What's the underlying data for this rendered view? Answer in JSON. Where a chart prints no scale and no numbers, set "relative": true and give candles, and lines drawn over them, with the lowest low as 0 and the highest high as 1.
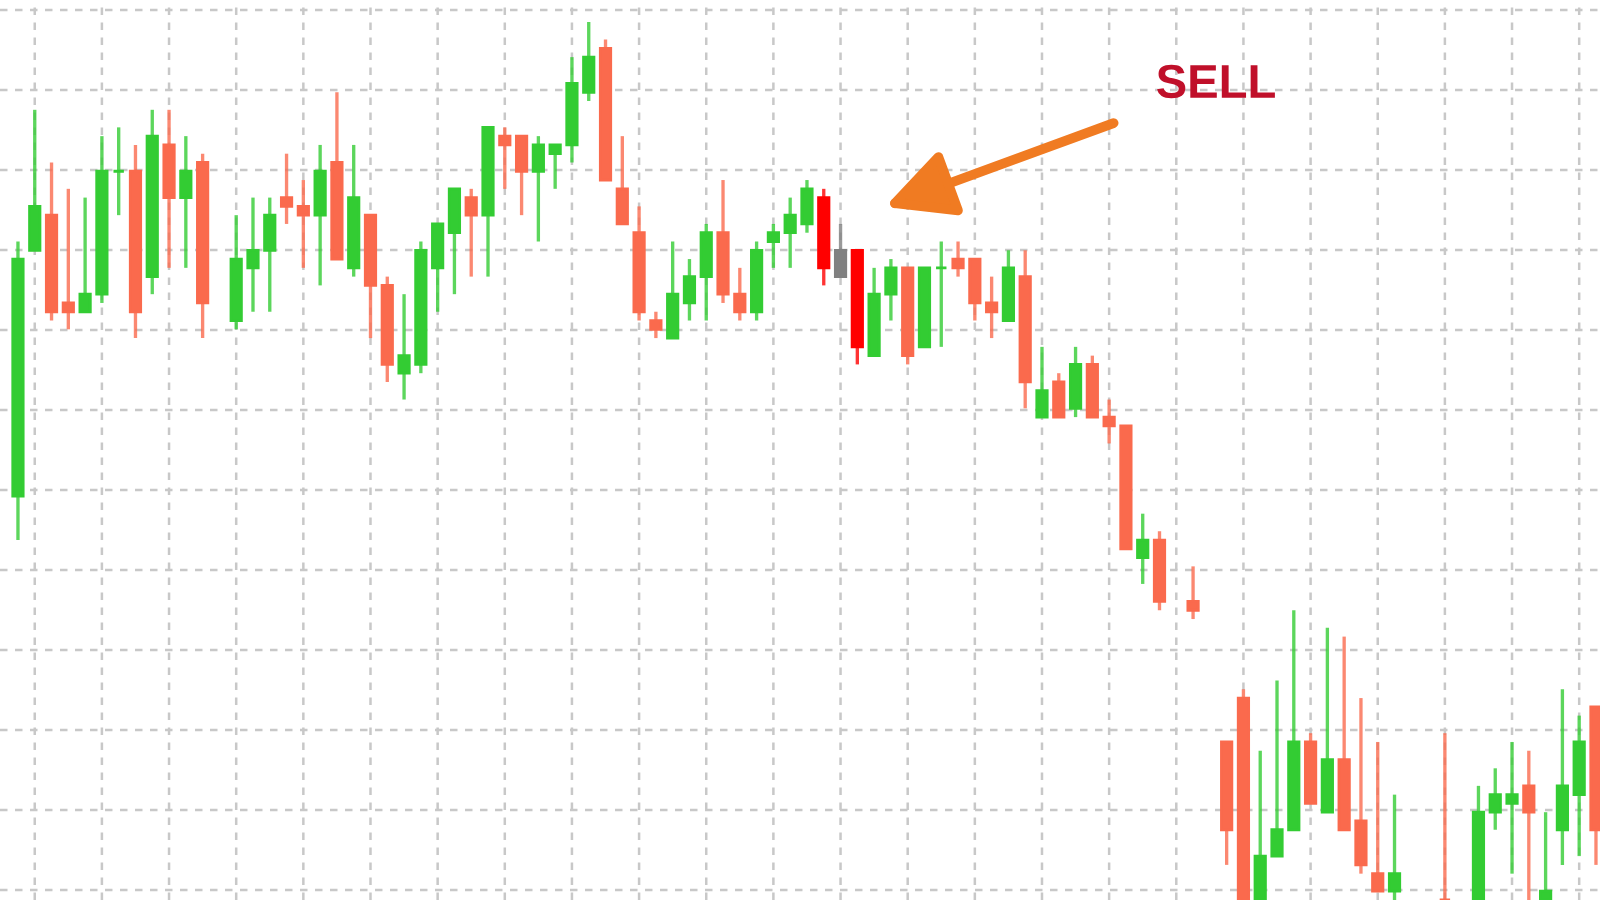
{
  "chart_data": {
    "type": "candlestick",
    "relative": true,
    "grid": true,
    "annotations": [
      "SELL"
    ],
    "categories": [
      null,
      null,
      null,
      null,
      null,
      null,
      null,
      null,
      null,
      null,
      null,
      null,
      null,
      null,
      null,
      null,
      null,
      null,
      null,
      null,
      null,
      null,
      null,
      null,
      null,
      null,
      null,
      null,
      null,
      null,
      null,
      null,
      null,
      null,
      null,
      null,
      null,
      null,
      null,
      null,
      null,
      null,
      null,
      null,
      null,
      null,
      null,
      null,
      null,
      null,
      null,
      null,
      null,
      null,
      null,
      null,
      null,
      null,
      null,
      null,
      null,
      null,
      null,
      null,
      null,
      null,
      null,
      null,
      null,
      null,
      null,
      null,
      null,
      null,
      null,
      null,
      null,
      null,
      null,
      null,
      null,
      null,
      null,
      null,
      null,
      null,
      null,
      null,
      null,
      null,
      null,
      null,
      null,
      null,
      null
    ],
    "ohlc": [
      [
        0.46,
        0.75,
        0.41,
        0.73
      ],
      [
        0.74,
        0.9,
        0.74,
        0.79
      ],
      [
        0.78,
        0.84,
        0.66,
        0.67
      ],
      [
        0.68,
        0.81,
        0.65,
        0.67
      ],
      [
        0.67,
        0.8,
        0.67,
        0.69
      ],
      [
        0.69,
        0.87,
        0.68,
        0.83
      ],
      [
        0.83,
        0.88,
        0.78,
        0.83
      ],
      [
        0.83,
        0.86,
        0.64,
        0.67
      ],
      [
        0.71,
        0.9,
        0.69,
        0.87
      ],
      [
        0.86,
        0.9,
        0.72,
        0.8
      ],
      [
        0.8,
        0.87,
        0.72,
        0.83
      ],
      [
        0.84,
        0.85,
        0.64,
        0.68
      ],
      null,
      [
        0.66,
        0.78,
        0.65,
        0.73
      ],
      [
        0.72,
        0.8,
        0.67,
        0.74
      ],
      [
        0.74,
        0.8,
        0.67,
        0.78
      ],
      [
        0.8,
        0.85,
        0.77,
        0.79
      ],
      [
        0.79,
        0.82,
        0.72,
        0.78
      ],
      [
        0.78,
        0.86,
        0.7,
        0.83
      ],
      [
        0.84,
        0.92,
        0.73,
        0.73
      ],
      [
        0.72,
        0.86,
        0.71,
        0.8
      ],
      [
        0.78,
        0.78,
        0.64,
        0.7
      ],
      [
        0.7,
        0.71,
        0.59,
        0.61
      ],
      [
        0.6,
        0.69,
        0.57,
        0.62
      ],
      [
        0.61,
        0.75,
        0.6,
        0.74
      ],
      [
        0.72,
        0.77,
        0.67,
        0.77
      ],
      [
        0.76,
        0.81,
        0.69,
        0.81
      ],
      [
        0.8,
        0.81,
        0.71,
        0.78
      ],
      [
        0.78,
        0.88,
        0.71,
        0.88
      ],
      [
        0.87,
        0.88,
        0.81,
        0.86
      ],
      [
        0.87,
        0.87,
        0.78,
        0.83
      ],
      [
        0.83,
        0.87,
        0.75,
        0.86
      ],
      [
        0.85,
        0.86,
        0.81,
        0.86
      ],
      [
        0.86,
        0.96,
        0.84,
        0.93
      ],
      [
        0.92,
        1.0,
        0.91,
        0.96
      ],
      [
        0.97,
        0.98,
        0.82,
        0.82
      ],
      [
        0.81,
        0.87,
        0.77,
        0.77
      ],
      [
        0.76,
        0.79,
        0.66,
        0.67
      ],
      [
        0.66,
        0.67,
        0.64,
        0.65
      ],
      [
        0.64,
        0.75,
        0.64,
        0.69
      ],
      [
        0.68,
        0.73,
        0.66,
        0.71
      ],
      [
        0.71,
        0.77,
        0.66,
        0.76
      ],
      [
        0.76,
        0.82,
        0.68,
        0.69
      ],
      [
        0.69,
        0.72,
        0.66,
        0.67
      ],
      [
        0.67,
        0.75,
        0.66,
        0.74
      ],
      [
        0.75,
        0.77,
        0.72,
        0.76
      ],
      [
        0.76,
        0.8,
        0.72,
        0.78
      ],
      [
        0.77,
        0.82,
        0.76,
        0.81
      ],
      [
        0.8,
        0.81,
        0.7,
        0.72
      ],
      [
        0.74,
        0.77,
        0.71,
        0.71
      ],
      [
        0.74,
        0.74,
        0.61,
        0.63
      ],
      [
        0.62,
        0.72,
        0.62,
        0.69
      ],
      [
        0.69,
        0.73,
        0.66,
        0.72
      ],
      [
        0.72,
        0.72,
        0.61,
        0.62
      ],
      [
        0.63,
        0.72,
        0.63,
        0.72
      ],
      [
        0.72,
        0.75,
        0.63,
        0.72
      ],
      [
        0.73,
        0.75,
        0.71,
        0.72
      ],
      [
        0.73,
        0.73,
        0.66,
        0.68
      ],
      [
        0.68,
        0.71,
        0.64,
        0.67
      ],
      [
        0.66,
        0.74,
        0.66,
        0.72
      ],
      [
        0.71,
        0.74,
        0.56,
        0.59
      ],
      [
        0.55,
        0.63,
        0.55,
        0.58
      ],
      [
        0.59,
        0.6,
        0.55,
        0.55
      ],
      [
        0.56,
        0.63,
        0.55,
        0.61
      ],
      [
        0.61,
        0.62,
        0.55,
        0.55
      ],
      [
        0.55,
        0.57,
        0.52,
        0.54
      ],
      [
        0.54,
        0.54,
        0.4,
        0.4
      ],
      [
        0.39,
        0.44,
        0.36,
        0.41
      ],
      [
        0.41,
        0.42,
        0.33,
        0.34
      ],
      null,
      [
        0.34,
        0.38,
        0.32,
        0.33
      ],
      null,
      [
        0.18,
        0.18,
        0.04,
        0.08
      ],
      [
        0.23,
        0.24,
        0.0,
        0.0
      ],
      [
        0.0,
        0.17,
        0.0,
        0.05
      ],
      [
        0.05,
        0.25,
        0.05,
        0.08
      ],
      [
        0.08,
        0.33,
        0.08,
        0.18
      ],
      [
        0.18,
        0.19,
        0.11,
        0.11
      ],
      [
        0.1,
        0.31,
        0.1,
        0.16
      ],
      [
        0.16,
        0.3,
        0.08,
        0.08
      ],
      [
        0.09,
        0.23,
        0.03,
        0.04
      ],
      [
        0.03,
        0.18,
        0.01,
        0.01
      ],
      [
        0.01,
        0.12,
        0.0,
        0.03
      ],
      null,
      null,
      [
        0.0,
        0.19,
        0.0,
        0.0
      ],
      null,
      [
        0.0,
        0.13,
        0.0,
        0.1
      ],
      [
        0.1,
        0.15,
        0.08,
        0.12
      ],
      [
        0.11,
        0.18,
        0.03,
        0.12
      ],
      [
        0.13,
        0.17,
        0.0,
        0.1
      ],
      [
        0.0,
        0.1,
        0.0,
        0.01
      ],
      [
        0.08,
        0.24,
        0.04,
        0.13
      ],
      [
        0.12,
        0.21,
        0.05,
        0.18
      ],
      [
        0.22,
        0.22,
        0.04,
        0.08
      ]
    ],
    "colors": [
      "#33cc33",
      "#33cc33",
      "#fa6a4d",
      "#fa6a4d",
      "#33cc33",
      "#33cc33",
      "#33cc33",
      "#fa6a4d",
      "#33cc33",
      "#fa6a4d",
      "#33cc33",
      "#fa6a4d",
      null,
      "#33cc33",
      "#33cc33",
      "#33cc33",
      "#fa6a4d",
      "#fa6a4d",
      "#33cc33",
      "#fa6a4d",
      "#33cc33",
      "#fa6a4d",
      "#fa6a4d",
      "#33cc33",
      "#33cc33",
      "#33cc33",
      "#33cc33",
      "#fa6a4d",
      "#33cc33",
      "#fa6a4d",
      "#fa6a4d",
      "#33cc33",
      "#33cc33",
      "#33cc33",
      "#33cc33",
      "#fa6a4d",
      "#fa6a4d",
      "#fa6a4d",
      "#fa6a4d",
      "#33cc33",
      "#33cc33",
      "#33cc33",
      "#fa6a4d",
      "#fa6a4d",
      "#33cc33",
      "#33cc33",
      "#33cc33",
      "#33cc33",
      "#ff0000",
      "#808080",
      "#ff0000",
      "#33cc33",
      "#33cc33",
      "#fa6a4d",
      "#33cc33",
      "#33cc33",
      "#fa6a4d",
      "#fa6a4d",
      "#fa6a4d",
      "#33cc33",
      "#fa6a4d",
      "#33cc33",
      "#fa6a4d",
      "#33cc33",
      "#fa6a4d",
      "#fa6a4d",
      "#fa6a4d",
      "#33cc33",
      "#fa6a4d",
      null,
      "#fa6a4d",
      null,
      "#fa6a4d",
      "#fa6a4d",
      "#33cc33",
      "#33cc33",
      "#33cc33",
      "#fa6a4d",
      "#33cc33",
      "#fa6a4d",
      "#fa6a4d",
      "#fa6a4d",
      "#33cc33",
      null,
      null,
      "#fa6a4d",
      null,
      "#33cc33",
      "#33cc33",
      "#33cc33",
      "#fa6a4d",
      "#33cc33",
      "#33cc33",
      "#33cc33",
      "#fa6a4d"
    ]
  }
}
